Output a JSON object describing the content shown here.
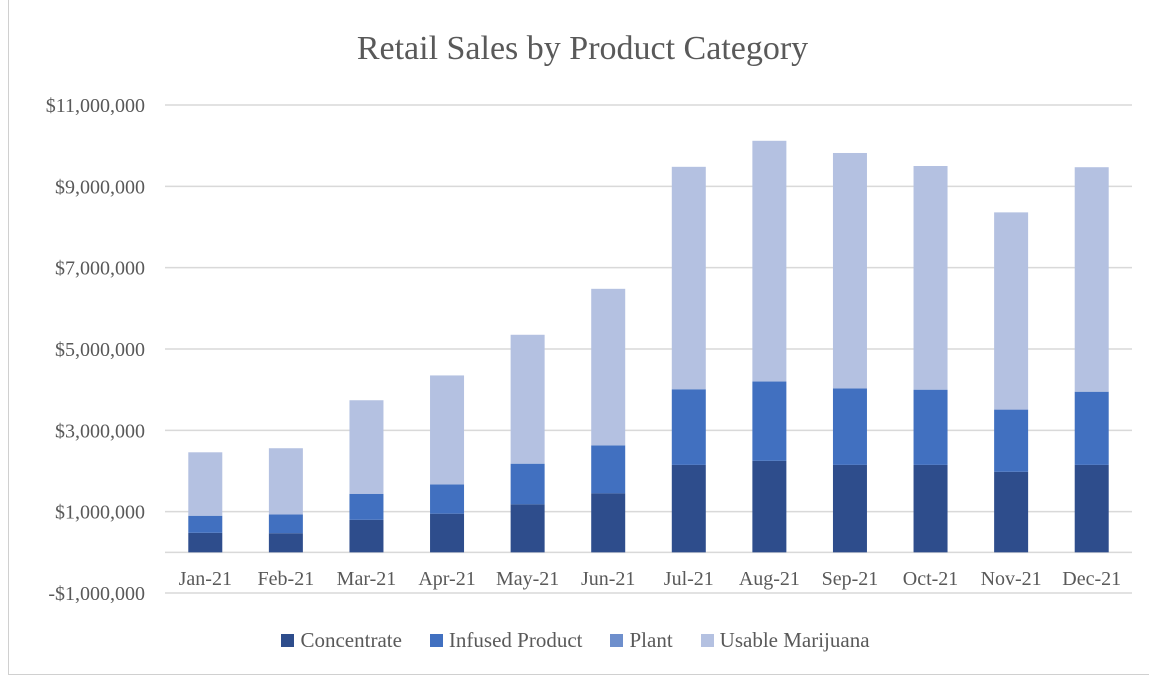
{
  "chart_data": {
    "type": "bar",
    "stacked": true,
    "title": "Retail Sales by Product Category",
    "xlabel": "",
    "ylabel": "",
    "categories": [
      "Jan-21",
      "Feb-21",
      "Mar-21",
      "Apr-21",
      "May-21",
      "Jun-21",
      "Jul-21",
      "Aug-21",
      "Sep-21",
      "Oct-21",
      "Nov-21",
      "Dec-21"
    ],
    "y_ticks": [
      "$11,000,000",
      "$9,000,000",
      "$7,000,000",
      "$5,000,000",
      "$3,000,000",
      "$1,000,000",
      "-$1,000,000"
    ],
    "y_tick_values": [
      11000000,
      9000000,
      7000000,
      5000000,
      3000000,
      1000000,
      -1000000
    ],
    "ylim": [
      -1000000,
      11000000
    ],
    "grid": true,
    "legend_position": "bottom",
    "series": [
      {
        "name": "Concentrate",
        "color": "#2e4d8c",
        "values": [
          480000,
          470000,
          800000,
          950000,
          1180000,
          1450000,
          2150000,
          2250000,
          2150000,
          2150000,
          1980000,
          2150000
        ]
      },
      {
        "name": "Infused Product",
        "color": "#4170c0",
        "values": [
          420000,
          460000,
          640000,
          720000,
          1000000,
          1180000,
          1860000,
          1950000,
          1880000,
          1850000,
          1530000,
          1800000
        ]
      },
      {
        "name": "Plant",
        "color": "#6e8fcc",
        "values": [
          0,
          0,
          0,
          0,
          0,
          0,
          0,
          0,
          0,
          0,
          0,
          0
        ]
      },
      {
        "name": "Usable Marijuana",
        "color": "#b4c1e1",
        "values": [
          1560000,
          1630000,
          2300000,
          2680000,
          3170000,
          3850000,
          5470000,
          5920000,
          5790000,
          5500000,
          4850000,
          5520000
        ]
      }
    ]
  }
}
